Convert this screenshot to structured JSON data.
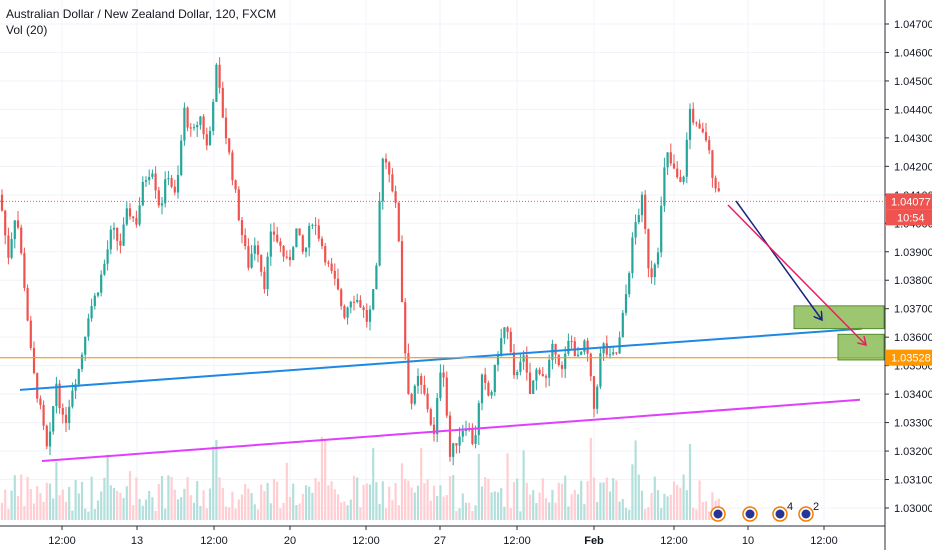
{
  "header": {
    "title": "Australian Dollar / New Zealand Dollar, 120, FXCM",
    "indicator": "Vol (20)"
  },
  "price_axis": {
    "ticks": [
      "1.04700",
      "1.04600",
      "1.04500",
      "1.04400",
      "1.04300",
      "1.04200",
      "1.04100",
      "1.04000",
      "1.03900",
      "1.03800",
      "1.03700",
      "1.03600",
      "1.03500",
      "1.03400",
      "1.03300",
      "1.03200",
      "1.03100",
      "1.03000"
    ]
  },
  "time_axis": {
    "ticks": [
      "12:00",
      "13",
      "12:00",
      "20",
      "12:00",
      "27",
      "12:00",
      "Feb",
      "12:00",
      "10",
      "12:00"
    ]
  },
  "price_tags": {
    "last_price": "1.04077",
    "countdown": "10:54",
    "level": "1.03528"
  },
  "colors": {
    "up": "#26a69a",
    "down": "#ef5350",
    "support_line": "#1e88e5",
    "lower_trend": "#e040fb",
    "level_line": "#ff9800",
    "projection_blue": "#1a237e",
    "projection_red": "#e91e63",
    "target_zone": "#7cb342",
    "volume_up": "#b2dfdb",
    "volume_down": "#ffcdd2"
  },
  "event_icons": [
    {
      "name": "event-flag-icon",
      "badge": ""
    },
    {
      "name": "event-flag-icon",
      "badge": ""
    },
    {
      "name": "event-flag-icon",
      "badge": "4"
    },
    {
      "name": "event-flag-icon",
      "badge": "2"
    }
  ],
  "chart_data": {
    "type": "candlestick",
    "title": "Australian Dollar / New Zealand Dollar, 120, FXCM",
    "ylim": [
      1.0295,
      1.0482
    ],
    "x_ticks": [
      "12:00",
      "13",
      "12:00",
      "20",
      "12:00",
      "27",
      "12:00",
      "Feb",
      "12:00",
      "10",
      "12:00"
    ],
    "price_path": [
      [
        0,
        1.041
      ],
      [
        8,
        1.0388
      ],
      [
        16,
        1.0405
      ],
      [
        24,
        1.038
      ],
      [
        32,
        1.035
      ],
      [
        40,
        1.0335
      ],
      [
        48,
        1.0318
      ],
      [
        56,
        1.0345
      ],
      [
        64,
        1.0328
      ],
      [
        72,
        1.0342
      ],
      [
        80,
        1.035
      ],
      [
        88,
        1.0368
      ],
      [
        96,
        1.0375
      ],
      [
        104,
        1.0385
      ],
      [
        112,
        1.0398
      ],
      [
        120,
        1.0392
      ],
      [
        128,
        1.0405
      ],
      [
        136,
        1.04
      ],
      [
        144,
        1.0415
      ],
      [
        152,
        1.042
      ],
      [
        160,
        1.0405
      ],
      [
        168,
        1.0418
      ],
      [
        176,
        1.0408
      ],
      [
        184,
        1.044
      ],
      [
        192,
        1.043
      ],
      [
        200,
        1.0438
      ],
      [
        208,
        1.0425
      ],
      [
        216,
        1.0455
      ],
      [
        224,
        1.0435
      ],
      [
        232,
        1.0418
      ],
      [
        240,
        1.04
      ],
      [
        248,
        1.0385
      ],
      [
        256,
        1.0395
      ],
      [
        264,
        1.0378
      ],
      [
        272,
        1.0398
      ],
      [
        280,
        1.0392
      ],
      [
        288,
        1.0385
      ],
      [
        296,
        1.0398
      ],
      [
        304,
        1.0388
      ],
      [
        312,
        1.0402
      ],
      [
        320,
        1.0395
      ],
      [
        328,
        1.0385
      ],
      [
        336,
        1.0378
      ],
      [
        344,
        1.0368
      ],
      [
        352,
        1.0375
      ],
      [
        360,
        1.0372
      ],
      [
        368,
        1.0365
      ],
      [
        376,
        1.038
      ],
      [
        382,
        1.0425
      ],
      [
        390,
        1.0418
      ],
      [
        398,
        1.04
      ],
      [
        404,
        1.036
      ],
      [
        410,
        1.0335
      ],
      [
        418,
        1.0345
      ],
      [
        426,
        1.0338
      ],
      [
        434,
        1.0325
      ],
      [
        442,
        1.0355
      ],
      [
        450,
        1.0318
      ],
      [
        458,
        1.0325
      ],
      [
        466,
        1.033
      ],
      [
        474,
        1.0322
      ],
      [
        482,
        1.0345
      ],
      [
        490,
        1.0338
      ],
      [
        498,
        1.0355
      ],
      [
        506,
        1.0365
      ],
      [
        514,
        1.0345
      ],
      [
        522,
        1.0355
      ],
      [
        530,
        1.034
      ],
      [
        538,
        1.035
      ],
      [
        546,
        1.0345
      ],
      [
        554,
        1.0358
      ],
      [
        562,
        1.0348
      ],
      [
        570,
        1.036
      ],
      [
        578,
        1.0352
      ],
      [
        586,
        1.0358
      ],
      [
        594,
        1.0335
      ],
      [
        602,
        1.0358
      ],
      [
        610,
        1.0352
      ],
      [
        618,
        1.0355
      ],
      [
        626,
        1.0375
      ],
      [
        634,
        1.0398
      ],
      [
        642,
        1.0408
      ],
      [
        650,
        1.038
      ],
      [
        658,
        1.0392
      ],
      [
        666,
        1.0425
      ],
      [
        674,
        1.0418
      ],
      [
        682,
        1.0412
      ],
      [
        690,
        1.044
      ],
      [
        698,
        1.0432
      ],
      [
        706,
        1.043
      ],
      [
        714,
        1.0415
      ],
      [
        722,
        1.0408
      ]
    ],
    "volume_range": [
      0,
      1
    ],
    "support_line": {
      "from": [
        "start",
        1.03415
      ],
      "to": [
        "10",
        1.0363
      ]
    },
    "lower_trendline": {
      "from": [
        "start",
        1.03165
      ],
      "to": [
        "12:00",
        1.0338
      ]
    },
    "horizontal_level": 1.03528,
    "last_price": 1.04077,
    "target_zones": [
      {
        "top": 1.0371,
        "bottom": 1.0363
      },
      {
        "top": 1.0361,
        "bottom": 1.0352
      }
    ]
  }
}
